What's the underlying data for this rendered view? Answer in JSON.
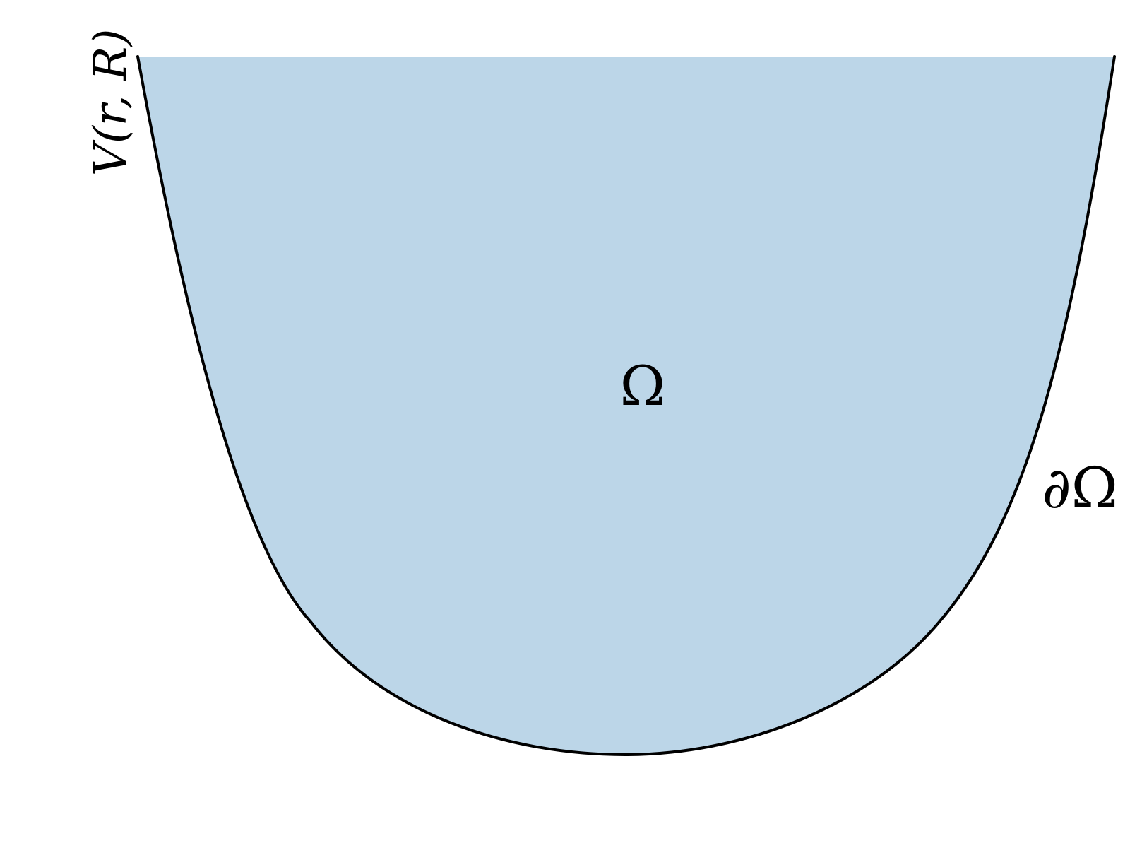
{
  "diagram": {
    "ylabel": "V(r, R)",
    "region_label": "Ω",
    "boundary_label": "∂Ω",
    "colors": {
      "region_fill": "#bcd6e8",
      "boundary_stroke": "#000000",
      "background": "#ffffff"
    }
  }
}
